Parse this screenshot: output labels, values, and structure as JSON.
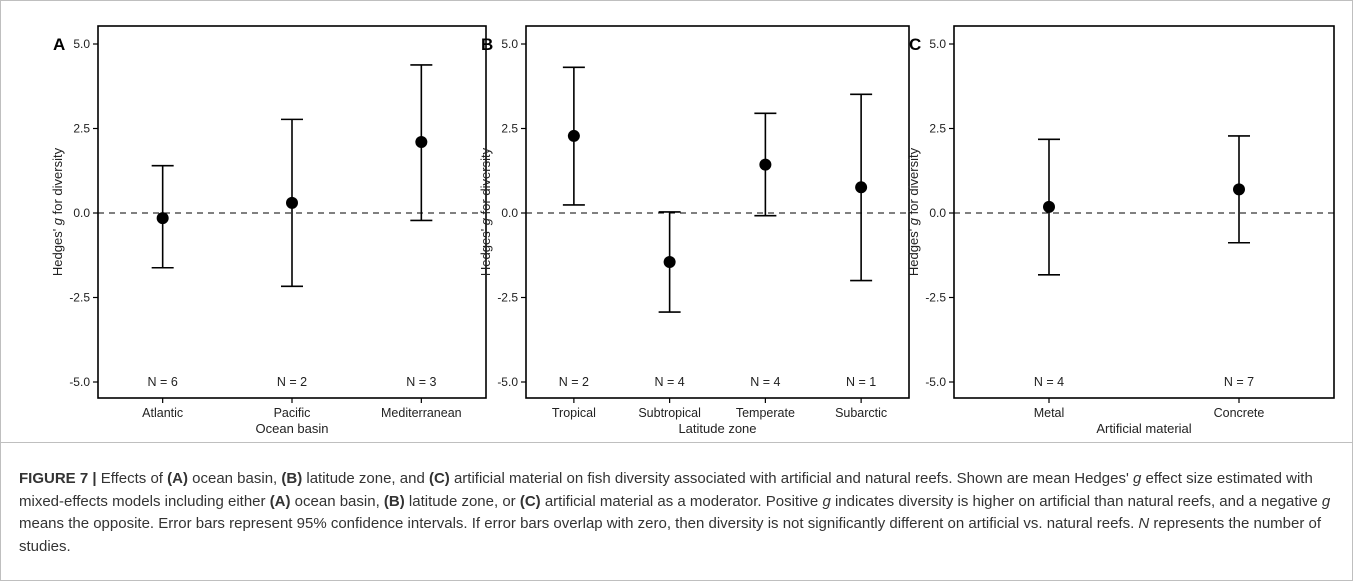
{
  "chart_data": [
    {
      "type": "scatter",
      "panel_label": "A",
      "xlabel": "Ocean basin",
      "ylabel_prefix": "Hedges'",
      "ylabel_italic": "g",
      "ylabel_suffix": "for diversity",
      "ylim": [
        -5.0,
        5.0
      ],
      "yticks": [
        -5.0,
        -2.5,
        0.0,
        2.5,
        5.0
      ],
      "ytick_labels": [
        "-5.0",
        "-2.5",
        "0.0",
        "2.5",
        "5.0"
      ],
      "categories": [
        "Atlantic",
        "Pacific",
        "Mediterranean"
      ],
      "values": [
        -0.15,
        0.3,
        2.1
      ],
      "ci_lower": [
        -1.62,
        -2.17,
        -0.22
      ],
      "ci_upper": [
        1.4,
        2.77,
        4.38
      ],
      "n_labels": [
        "N = 6",
        "N = 2",
        "N = 3"
      ],
      "reference_line": 0.0
    },
    {
      "type": "scatter",
      "panel_label": "B",
      "xlabel": "Latitude zone",
      "ylabel_prefix": "Hedges'",
      "ylabel_italic": "g",
      "ylabel_suffix": "for diversity",
      "ylim": [
        -5.0,
        5.0
      ],
      "yticks": [
        -5.0,
        -2.5,
        0.0,
        2.5,
        5.0
      ],
      "ytick_labels": [
        "-5.0",
        "-2.5",
        "0.0",
        "2.5",
        "5.0"
      ],
      "categories": [
        "Tropical",
        "Subtropical",
        "Temperate",
        "Subarctic"
      ],
      "values": [
        2.28,
        -1.45,
        1.43,
        0.76
      ],
      "ci_lower": [
        0.24,
        -2.93,
        -0.08,
        -2.0
      ],
      "ci_upper": [
        4.31,
        0.03,
        2.95,
        3.51
      ],
      "n_labels": [
        "N = 2",
        "N = 4",
        "N = 4",
        "N = 1"
      ],
      "reference_line": 0.0
    },
    {
      "type": "scatter",
      "panel_label": "C",
      "xlabel": "Artificial material",
      "ylabel_prefix": "Hedges'",
      "ylabel_italic": "g",
      "ylabel_suffix": "for diversity",
      "ylim": [
        -5.0,
        5.0
      ],
      "yticks": [
        -5.0,
        -2.5,
        0.0,
        2.5,
        5.0
      ],
      "ytick_labels": [
        "-5.0",
        "-2.5",
        "0.0",
        "2.5",
        "5.0"
      ],
      "categories": [
        "Metal",
        "Concrete"
      ],
      "values": [
        0.18,
        0.7
      ],
      "ci_lower": [
        -1.83,
        -0.88
      ],
      "ci_upper": [
        2.18,
        2.28
      ],
      "n_labels": [
        "N = 4",
        "N = 7"
      ],
      "reference_line": 0.0
    }
  ],
  "caption": {
    "figure_label": "FIGURE 7 |",
    "t1": " Effects of ",
    "a1": "(A)",
    "t2": " ocean basin, ",
    "b1": "(B)",
    "t3": " latitude zone, and ",
    "c1": "(C)",
    "t4": " artificial material on fish diversity associated with artificial and natural reefs. Shown are mean Hedges' ",
    "g1": "g",
    "t5": " effect size estimated with mixed-effects models including either ",
    "a2": "(A)",
    "t6": " ocean basin, ",
    "b2": "(B)",
    "t7": " latitude zone, or ",
    "c2": "(C)",
    "t8": " artificial material as a moderator. Positive ",
    "g2": "g",
    "t9": " indicates diversity is higher on artificial than natural reefs, and a negative ",
    "g3": "g",
    "t10": " means the opposite. Error bars represent 95% confidence intervals. If error bars overlap with zero, then diversity is not significantly different on artificial vs. natural reefs. ",
    "n": "N",
    "t11": " represents the number of studies."
  }
}
